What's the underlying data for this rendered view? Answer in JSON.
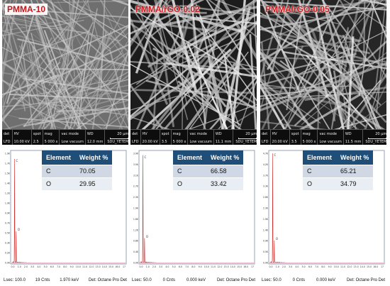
{
  "panels": [
    {
      "label": "PMMA-10",
      "sem_info": {
        "det": "LFD",
        "hv": "10.00 kV",
        "spot": "2.5",
        "mag": "5 000 x",
        "vac_mode": "Low vacuum",
        "wd": "12.0 mm",
        "scale": "20 µm",
        "lab": "SDU_YETEM"
      },
      "table": {
        "headers": [
          "Element",
          "Weight %"
        ],
        "rows": [
          [
            "C",
            "70.05"
          ],
          [
            "O",
            "29.95"
          ]
        ]
      },
      "footer": {
        "lsec": "Lsec: 100.0",
        "cnts": "19 Cnts",
        "kev": "1.970 keV",
        "det": "Det: Octane Pro Det"
      }
    },
    {
      "label": "PMMA/rGO-0.02",
      "sem_info": {
        "det": "LFD",
        "hv": "20.00 kV",
        "spot": "3.5",
        "mag": "5 000 x",
        "vac_mode": "Low vacuum",
        "wd": "11.1 mm",
        "scale": "20 µm",
        "lab": "SDU_YETEM"
      },
      "table": {
        "headers": [
          "Element",
          "Weight %"
        ],
        "rows": [
          [
            "C",
            "66.58"
          ],
          [
            "O",
            "33.42"
          ]
        ]
      },
      "footer": {
        "lsec": "Lsec: 50.0",
        "cnts": "0 Cnts",
        "kev": "0.000 keV",
        "det": "Det: Octane Pro Det"
      }
    },
    {
      "label": "PMMA/rGO-0.05",
      "sem_info": {
        "det": "LFD",
        "hv": "20.00 kV",
        "spot": "3.5",
        "mag": "5 000 x",
        "vac_mode": "Low vacuum",
        "wd": "11.5 mm",
        "scale": "20 µm",
        "lab": "SDU_YETEM"
      },
      "table": {
        "headers": [
          "Element",
          "Weight %"
        ],
        "rows": [
          [
            "C",
            "65.21"
          ],
          [
            "O",
            "34.79"
          ]
        ]
      },
      "footer": {
        "lsec": "Lsec: 50.0",
        "cnts": "0 Cnts",
        "kev": "0.000 keV",
        "det": "Det: Octane Pro Det"
      }
    }
  ],
  "sem_field_labels": {
    "det": "det",
    "hv": "HV",
    "spot": "spot",
    "mag": "mag",
    "vac": "vac mode",
    "wd": "WD"
  },
  "eds_axis": {
    "x_ticks": [
      "0.0",
      "1.0",
      "2.0",
      "3.0",
      "4.0",
      "5.0",
      "6.0",
      "7.0",
      "8.0",
      "9.0",
      "10.0",
      "11.0",
      "12.0",
      "13.0",
      "14.0",
      "15.0",
      "16.0",
      "17"
    ],
    "y_ticks_p0": [
      "1.9K",
      "1.7K",
      "1.5K",
      "1.4K",
      "1.2K",
      "1.0K",
      "0.9K",
      "0.7K",
      "0.5K",
      "0.3K",
      "0.2K",
      "0.0K"
    ],
    "y_ticks_p1": [
      "3.9K",
      "3.5K",
      "3.1K",
      "2.7K",
      "2.3K",
      "1.9K",
      "1.6K",
      "1.2K",
      "0.8K",
      "0.4K",
      "0.0K"
    ],
    "y_ticks_p2": [
      "4.7K",
      "4.2K",
      "3.7K",
      "3.3K",
      "2.8K",
      "2.3K",
      "1.9K",
      "1.4K",
      "0.9K",
      "0.5K",
      "0.0K"
    ],
    "peak_c": "C",
    "peak_o": "O"
  },
  "colors": {
    "header_bg": "#1f4e79",
    "row1": "#d0d8e6",
    "row2": "#e9edf4",
    "label": "#c0171b",
    "spectrum": "#d0302f"
  }
}
